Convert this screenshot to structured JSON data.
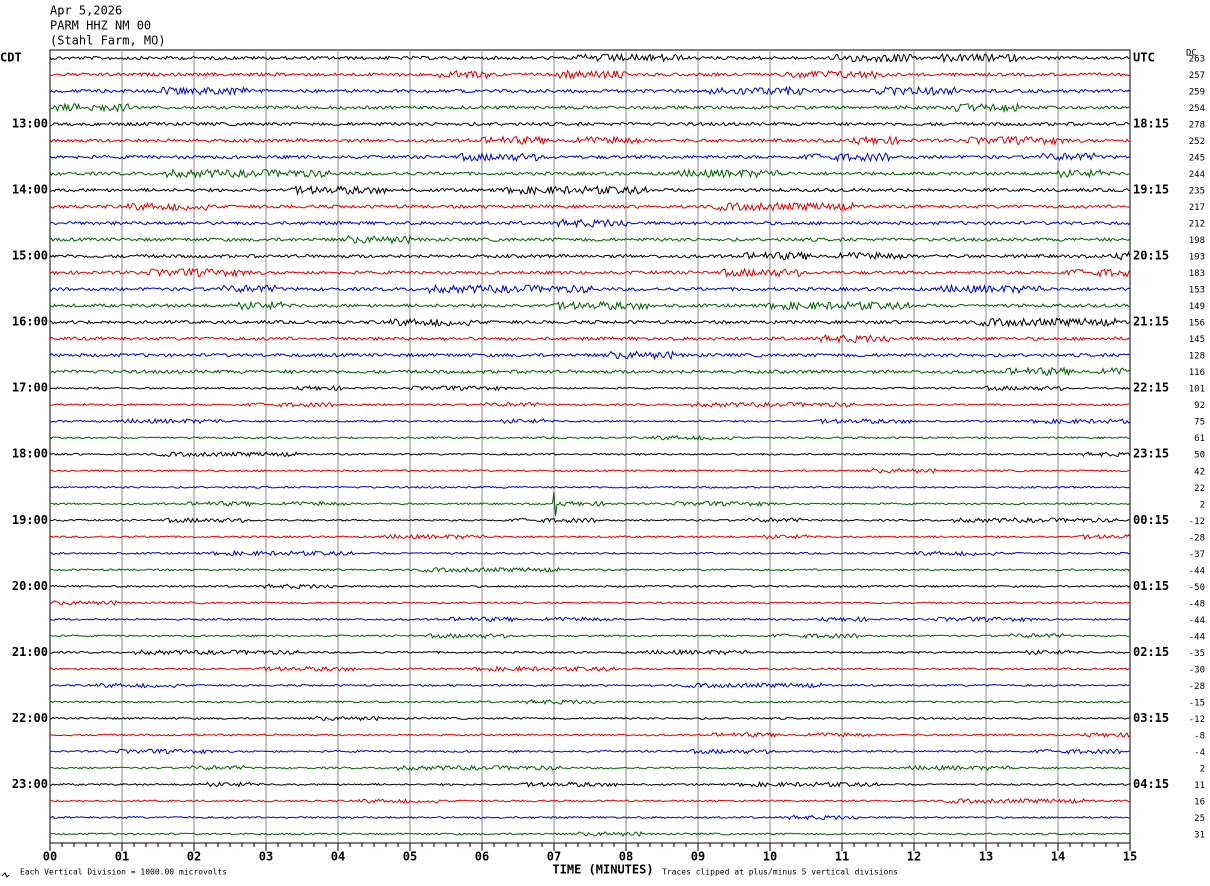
{
  "header": {
    "date": "Apr 5,2026",
    "station": "PARM HHZ NM 00",
    "location": "(Stahl Farm, MO)",
    "dc_title": "DC"
  },
  "left_labels": [
    "CDT",
    "13:00",
    "14:00",
    "15:00",
    "16:00",
    "17:00",
    "18:00",
    "19:00",
    "20:00",
    "21:00",
    "22:00",
    "23:00"
  ],
  "right_labels": [
    "UTC",
    "18:15",
    "19:15",
    "20:15",
    "21:15",
    "22:15",
    "23:15",
    "00:15",
    "01:15",
    "02:15",
    "03:15",
    "04:15"
  ],
  "dc_values": [
    263,
    257,
    259,
    254,
    278,
    252,
    245,
    244,
    235,
    217,
    212,
    198,
    193,
    183,
    153,
    149,
    156,
    145,
    128,
    116,
    101,
    92,
    75,
    61,
    50,
    42,
    22,
    2,
    -12,
    -28,
    -37,
    -44,
    -50,
    -48,
    -44,
    -44,
    -35,
    -30,
    -28,
    -15,
    -12,
    -8,
    -4,
    2,
    11,
    16,
    25,
    31
  ],
  "x_axis": {
    "labels": [
      "00",
      "01",
      "02",
      "03",
      "04",
      "05",
      "06",
      "07",
      "08",
      "09",
      "10",
      "11",
      "12",
      "13",
      "14",
      "15"
    ],
    "title": "TIME (MINUTES)"
  },
  "footer": {
    "scale_note": "Each Vertical Division = 1000.00 microvolts",
    "clip_note": "Traces clipped at plus/minus 5 vertical divisions"
  }
}
